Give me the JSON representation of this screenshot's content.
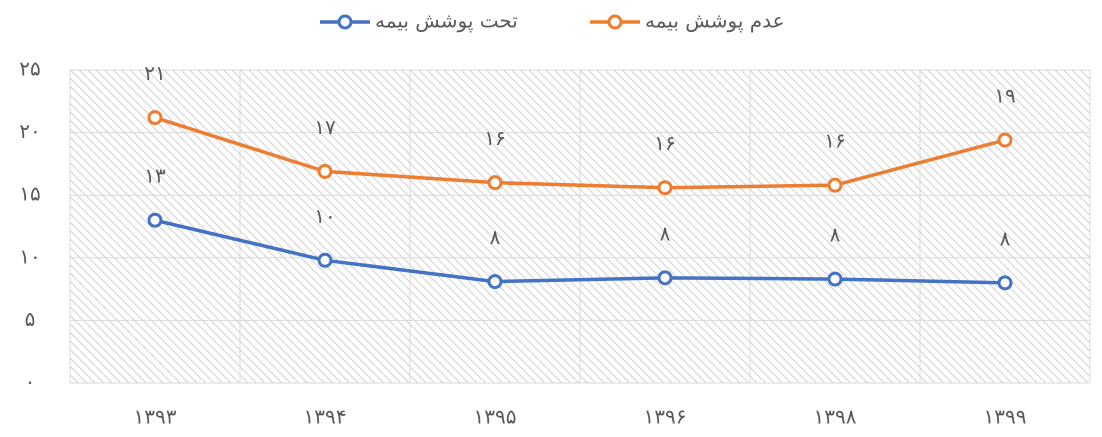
{
  "chart_data": {
    "type": "line",
    "categories": [
      "۱۳۹۳",
      "۱۳۹۴",
      "۱۳۹۵",
      "۱۳۹۶",
      "۱۳۹۸",
      "۱۳۹۹"
    ],
    "series": [
      {
        "name": "تحت پوشش بیمه",
        "color": "#4472c4",
        "values": [
          13.0,
          9.8,
          8.1,
          8.4,
          8.3,
          8.0
        ],
        "value_labels": [
          "۱۳",
          "۱۰",
          "۸",
          "۸",
          "۸",
          "۸"
        ]
      },
      {
        "name": "عدم پوشش بیمه",
        "color": "#ed7d31",
        "values": [
          21.2,
          16.9,
          16.0,
          15.6,
          15.8,
          19.4
        ],
        "value_labels": [
          "۲۱",
          "۱۷",
          "۱۶",
          "۱۶",
          "۱۶",
          "۱۹"
        ]
      }
    ],
    "ylim": [
      0,
      25
    ],
    "yticks": [
      {
        "value": 0,
        "label": "۰"
      },
      {
        "value": 5,
        "label": "۵"
      },
      {
        "value": 10,
        "label": "۱۰"
      },
      {
        "value": 15,
        "label": "۱۵"
      },
      {
        "value": 20,
        "label": "۲۰"
      },
      {
        "value": 25,
        "label": "۲۵"
      }
    ],
    "grid": true
  }
}
